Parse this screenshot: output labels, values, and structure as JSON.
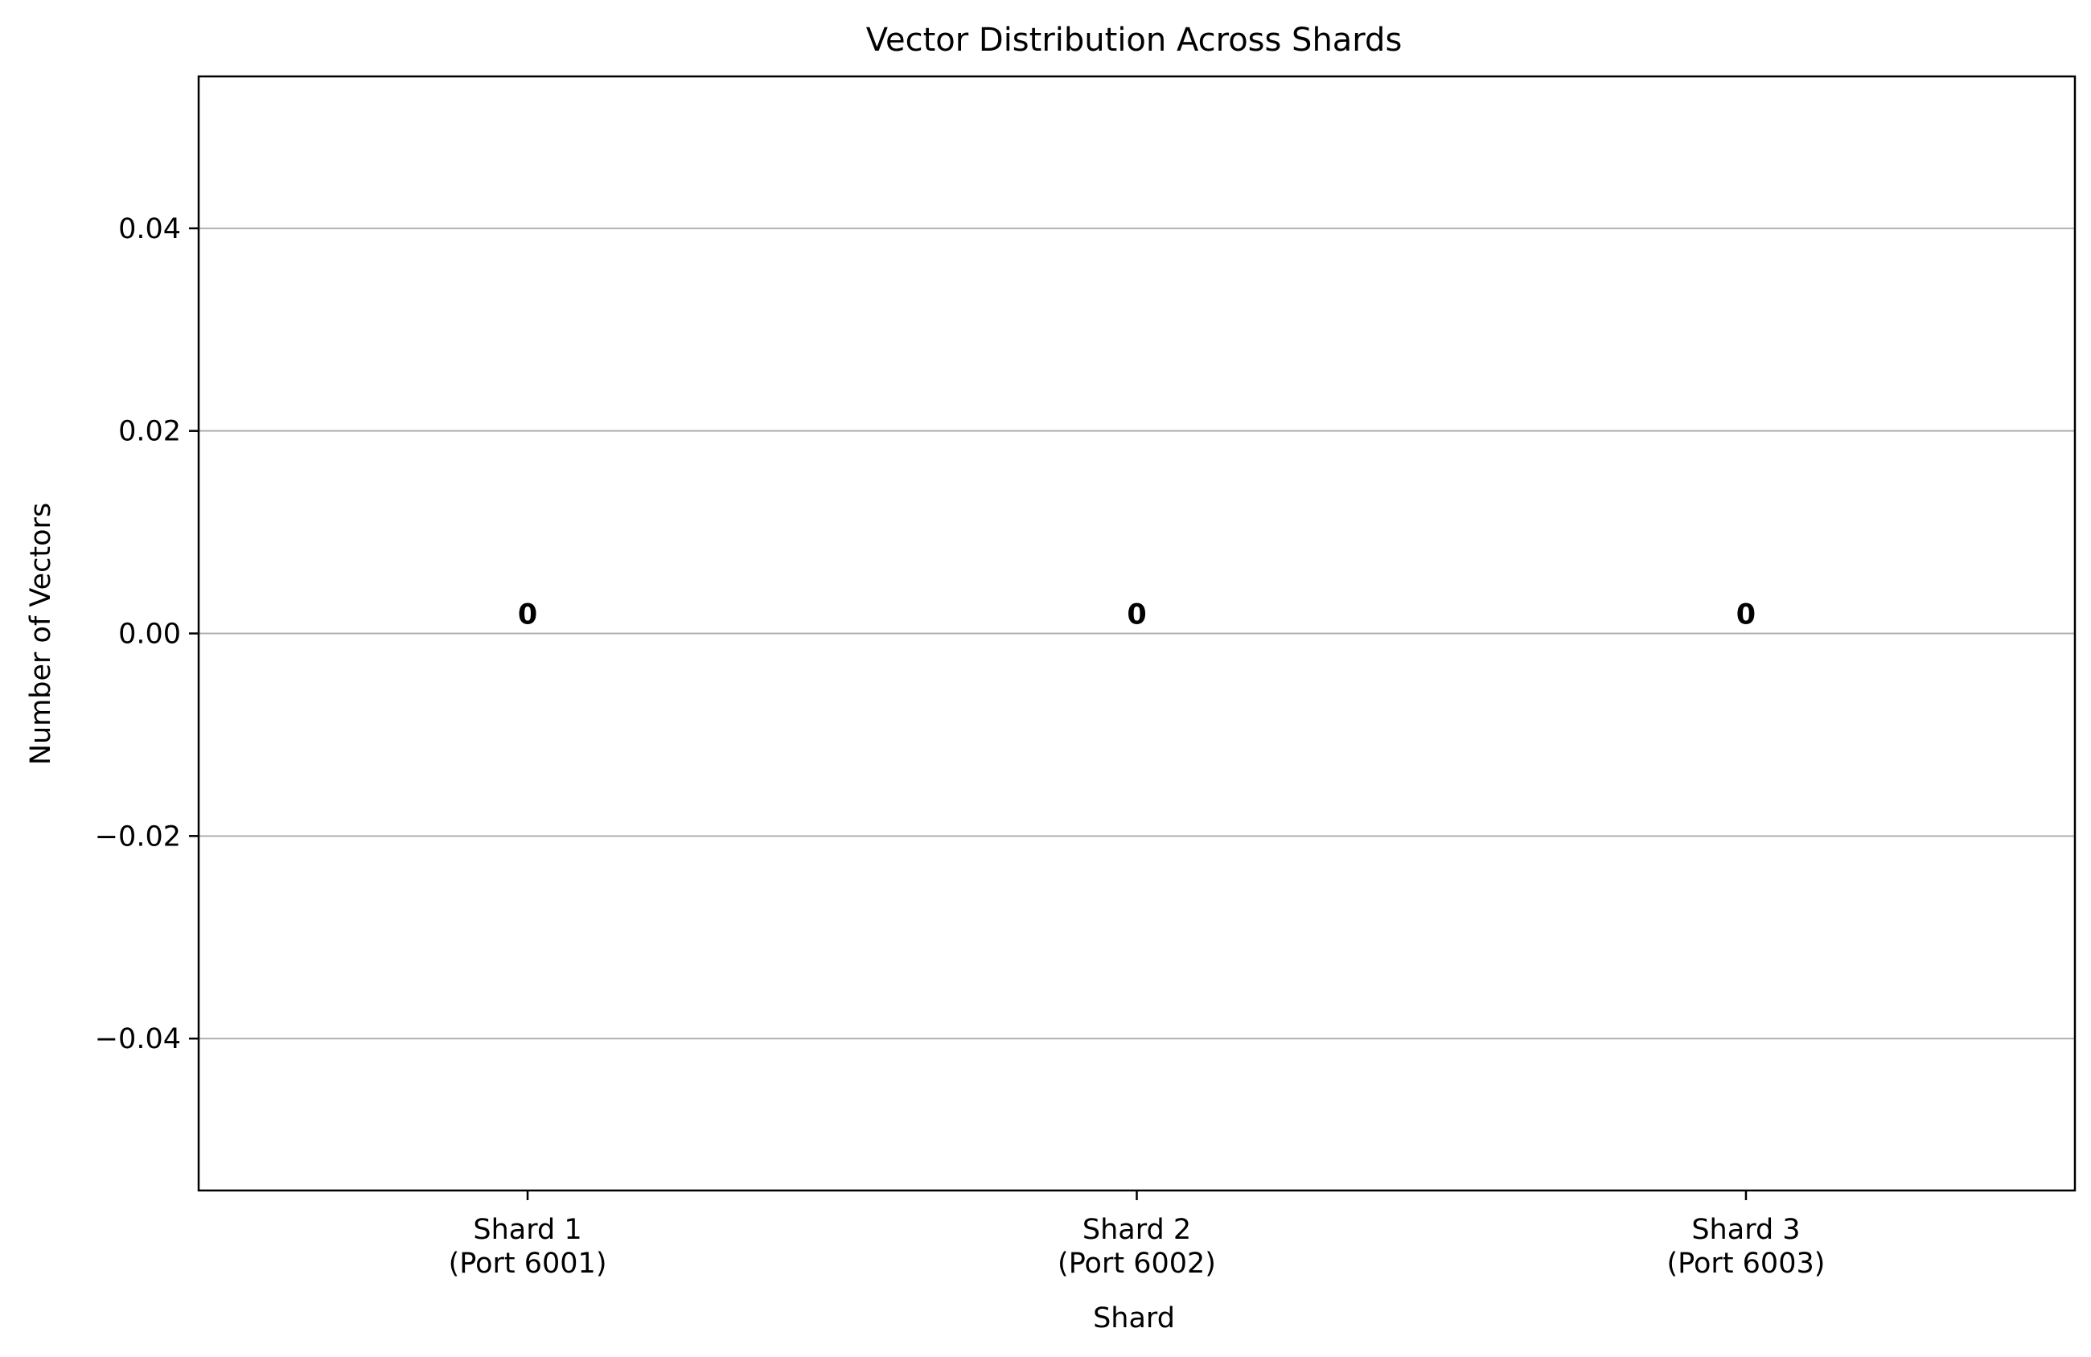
{
  "chart_data": {
    "type": "bar",
    "title": "Vector Distribution Across Shards",
    "xlabel": "Shard",
    "ylabel": "Number of Vectors",
    "categories": [
      [
        "Shard 1",
        "(Port 6001)"
      ],
      [
        "Shard 2",
        "(Port 6002)"
      ],
      [
        "Shard 3",
        "(Port 6003)"
      ]
    ],
    "values": [
      0,
      0,
      0
    ],
    "data_labels": [
      "0",
      "0",
      "0"
    ],
    "ylim": [
      -0.055,
      0.055
    ],
    "yticks": [
      -0.04,
      -0.02,
      0.0,
      0.02,
      0.04
    ],
    "ytick_labels": [
      "−0.04",
      "−0.02",
      "0.00",
      "0.02",
      "0.04"
    ],
    "grid": "y",
    "colors": {
      "grid": "#b0b0b0",
      "axes": "#000000",
      "bar": "#1f77b4"
    }
  }
}
